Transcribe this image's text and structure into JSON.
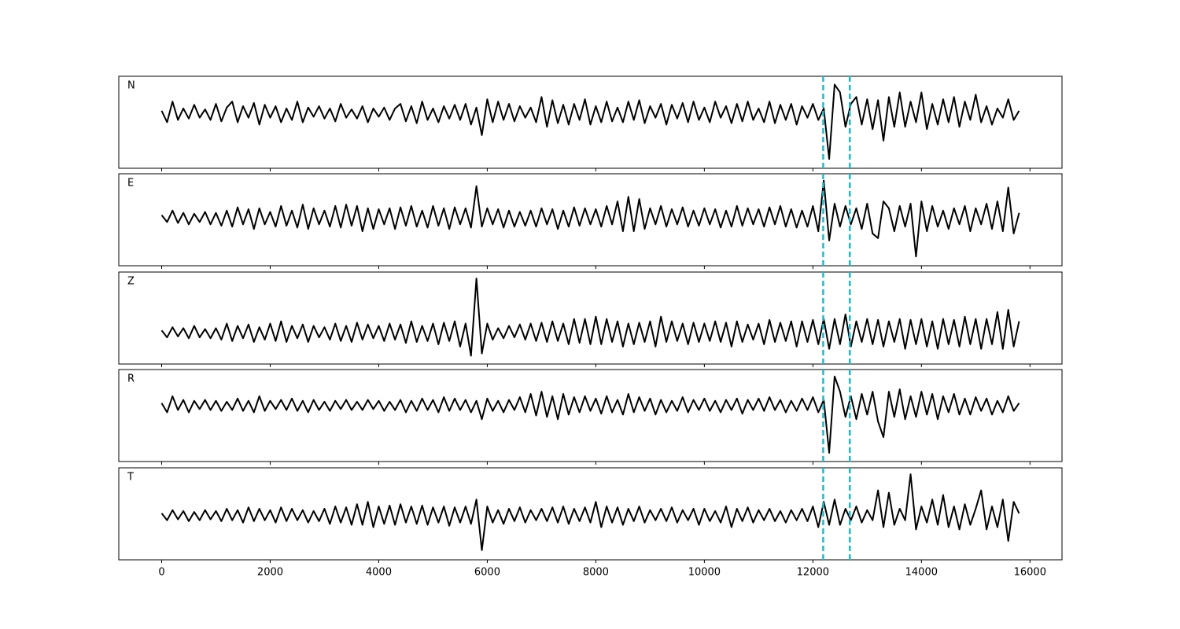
{
  "chart_data": {
    "type": "line",
    "xlim": [
      -790,
      16590
    ],
    "xticks": [
      0,
      2000,
      4000,
      6000,
      8000,
      10000,
      12000,
      14000,
      16000
    ],
    "markers": [
      12190,
      12680
    ],
    "marker_color": "#17becf",
    "x": [
      0,
      100,
      200,
      300,
      400,
      500,
      600,
      700,
      800,
      900,
      1000,
      1100,
      1200,
      1300,
      1400,
      1500,
      1600,
      1700,
      1800,
      1900,
      2000,
      2100,
      2200,
      2300,
      2400,
      2500,
      2600,
      2700,
      2800,
      2900,
      3000,
      3100,
      3200,
      3300,
      3400,
      3500,
      3600,
      3700,
      3800,
      3900,
      4000,
      4100,
      4200,
      4300,
      4400,
      4500,
      4600,
      4700,
      4800,
      4900,
      5000,
      5100,
      5200,
      5300,
      5400,
      5500,
      5600,
      5700,
      5800,
      5900,
      6000,
      6100,
      6200,
      6300,
      6400,
      6500,
      6600,
      6700,
      6800,
      6900,
      7000,
      7100,
      7200,
      7300,
      7400,
      7500,
      7600,
      7700,
      7800,
      7900,
      8000,
      8100,
      8200,
      8300,
      8400,
      8500,
      8600,
      8700,
      8800,
      8900,
      9000,
      9100,
      9200,
      9300,
      9400,
      9500,
      9600,
      9700,
      9800,
      9900,
      10000,
      10100,
      10200,
      10300,
      10400,
      10500,
      10600,
      10700,
      10800,
      10900,
      11000,
      11100,
      11200,
      11300,
      11400,
      11500,
      11600,
      11700,
      11800,
      11900,
      12000,
      12100,
      12200,
      12300,
      12400,
      12500,
      12600,
      12700,
      12800,
      12900,
      13000,
      13100,
      13200,
      13300,
      13400,
      13500,
      13600,
      13700,
      13800,
      13900,
      14000,
      14100,
      14200,
      14300,
      14400,
      14500,
      14600,
      14700,
      14800,
      14900,
      15000,
      15100,
      15200,
      15300,
      15400,
      15500,
      15600,
      15700,
      15800
    ],
    "series": [
      {
        "name": "N",
        "color": "#000000",
        "ylim": [
          -1.2,
          0.8
        ],
        "values": [
          0.05,
          -0.2,
          0.25,
          -0.15,
          0.1,
          -0.12,
          0.18,
          -0.1,
          0.08,
          -0.15,
          0.2,
          -0.18,
          0.12,
          0.25,
          -0.2,
          0.15,
          -0.1,
          0.22,
          -0.25,
          0.18,
          -0.1,
          0.15,
          -0.2,
          0.1,
          -0.15,
          0.25,
          -0.2,
          0.12,
          -0.08,
          0.15,
          -0.12,
          0.1,
          -0.18,
          0.2,
          -0.1,
          0.08,
          -0.12,
          0.15,
          -0.2,
          0.1,
          -0.08,
          0.12,
          -0.15,
          0.1,
          0.2,
          -0.18,
          0.15,
          -0.22,
          0.25,
          -0.15,
          0.1,
          -0.2,
          0.15,
          -0.12,
          0.18,
          -0.15,
          0.2,
          -0.25,
          0.12,
          -0.48,
          0.3,
          -0.2,
          0.25,
          -0.15,
          0.2,
          -0.18,
          0.15,
          -0.1,
          0.12,
          -0.2,
          0.35,
          -0.3,
          0.28,
          -0.22,
          0.18,
          -0.25,
          0.2,
          -0.15,
          0.3,
          -0.25,
          0.15,
          -0.2,
          0.25,
          -0.18,
          0.12,
          -0.2,
          0.25,
          -0.15,
          0.28,
          -0.22,
          0.15,
          -0.1,
          0.2,
          -0.25,
          0.18,
          -0.12,
          0.22,
          -0.2,
          0.25,
          -0.15,
          0.12,
          -0.2,
          0.25,
          -0.1,
          0.15,
          -0.22,
          0.2,
          -0.18,
          0.25,
          -0.15,
          0.1,
          -0.2,
          0.25,
          -0.22,
          0.18,
          -0.15,
          0.2,
          -0.25,
          0.15,
          -0.1,
          0.2,
          -0.15,
          0.1,
          -1.0,
          0.62,
          0.45,
          -0.3,
          0.2,
          0.35,
          -0.25,
          0.3,
          -0.35,
          0.28,
          -0.6,
          0.35,
          -0.3,
          0.45,
          -0.3,
          0.25,
          -0.2,
          0.45,
          -0.35,
          0.2,
          -0.25,
          0.3,
          -0.2,
          0.35,
          -0.3,
          0.25,
          -0.15,
          0.4,
          -0.2,
          0.15,
          -0.25,
          0.1,
          -0.1,
          0.3,
          -0.15,
          0.05
        ]
      },
      {
        "name": "E",
        "color": "#000000",
        "ylim": [
          -1.05,
          0.95
        ],
        "values": [
          0.05,
          -0.1,
          0.15,
          -0.12,
          0.1,
          -0.15,
          0.08,
          -0.1,
          0.12,
          -0.15,
          0.1,
          -0.18,
          0.15,
          -0.2,
          0.22,
          -0.15,
          0.18,
          -0.25,
          0.2,
          -0.15,
          0.12,
          -0.2,
          0.25,
          -0.18,
          0.15,
          -0.22,
          0.28,
          -0.25,
          0.2,
          -0.15,
          0.15,
          -0.2,
          0.25,
          -0.22,
          0.28,
          -0.18,
          0.25,
          -0.3,
          0.2,
          -0.25,
          0.18,
          -0.15,
          0.2,
          -0.25,
          0.22,
          -0.18,
          0.25,
          -0.2,
          0.15,
          -0.22,
          0.25,
          -0.18,
          0.2,
          -0.25,
          0.22,
          -0.15,
          0.2,
          -0.22,
          0.68,
          -0.2,
          0.2,
          -0.15,
          0.18,
          -0.22,
          0.15,
          -0.2,
          0.12,
          -0.18,
          0.15,
          -0.2,
          0.2,
          -0.15,
          0.18,
          -0.25,
          0.15,
          -0.2,
          0.22,
          -0.18,
          0.2,
          -0.15,
          0.18,
          -0.2,
          0.25,
          -0.15,
          0.35,
          -0.3,
          0.45,
          -0.3,
          0.4,
          -0.25,
          0.2,
          -0.15,
          0.25,
          -0.2,
          0.18,
          -0.15,
          0.22,
          -0.2,
          0.15,
          -0.18,
          0.2,
          -0.15,
          0.18,
          -0.22,
          0.15,
          -0.2,
          0.25,
          -0.18,
          0.2,
          -0.15,
          0.18,
          -0.2,
          0.22,
          -0.15,
          0.25,
          -0.2,
          0.18,
          -0.22,
          0.15,
          -0.2,
          0.25,
          -0.3,
          0.8,
          -0.5,
          0.3,
          -0.2,
          0.25,
          -0.15,
          0.2,
          -0.25,
          0.3,
          -0.35,
          -0.45,
          0.35,
          0.2,
          -0.3,
          0.25,
          -0.2,
          0.3,
          -0.85,
          0.35,
          -0.3,
          0.25,
          -0.2,
          0.15,
          -0.25,
          0.2,
          -0.15,
          0.25,
          -0.3,
          0.2,
          -0.15,
          0.3,
          -0.25,
          0.35,
          -0.3,
          0.65,
          -0.35,
          0.1
        ]
      },
      {
        "name": "Z",
        "color": "#000000",
        "ylim": [
          -0.68,
          1.32
        ],
        "values": [
          0.05,
          -0.1,
          0.12,
          -0.08,
          0.1,
          -0.12,
          0.15,
          -0.1,
          0.08,
          -0.12,
          0.1,
          -0.15,
          0.2,
          -0.18,
          0.15,
          -0.12,
          0.18,
          -0.2,
          0.12,
          -0.15,
          0.2,
          -0.18,
          0.25,
          -0.2,
          0.15,
          -0.12,
          0.18,
          -0.2,
          0.15,
          -0.1,
          0.12,
          -0.15,
          0.2,
          -0.18,
          0.15,
          -0.2,
          0.22,
          -0.15,
          0.18,
          -0.12,
          0.15,
          -0.18,
          0.2,
          -0.15,
          0.18,
          -0.22,
          0.25,
          -0.2,
          0.15,
          -0.18,
          0.2,
          -0.25,
          0.22,
          -0.18,
          0.25,
          -0.3,
          0.2,
          -0.5,
          1.18,
          -0.45,
          0.2,
          -0.15,
          0.1,
          -0.12,
          0.15,
          -0.1,
          0.18,
          -0.15,
          0.2,
          -0.18,
          0.22,
          -0.2,
          0.25,
          -0.18,
          0.2,
          -0.25,
          0.3,
          -0.22,
          0.3,
          -0.25,
          0.35,
          -0.25,
          0.3,
          -0.2,
          0.25,
          -0.3,
          0.2,
          -0.25,
          0.22,
          -0.2,
          0.25,
          -0.3,
          0.35,
          -0.2,
          0.25,
          -0.18,
          0.2,
          -0.25,
          0.22,
          -0.2,
          0.2,
          -0.18,
          0.25,
          -0.2,
          0.22,
          -0.3,
          0.25,
          -0.2,
          0.18,
          -0.15,
          0.2,
          -0.25,
          0.28,
          -0.2,
          0.22,
          -0.18,
          0.25,
          -0.3,
          0.25,
          -0.2,
          0.28,
          -0.25,
          0.3,
          -0.35,
          0.3,
          -0.25,
          0.4,
          -0.3,
          0.25,
          -0.2,
          0.3,
          -0.25,
          0.28,
          -0.3,
          0.25,
          -0.2,
          0.3,
          -0.35,
          0.28,
          -0.25,
          0.3,
          -0.3,
          0.25,
          -0.35,
          0.3,
          -0.25,
          0.28,
          -0.3,
          0.35,
          -0.25,
          0.3,
          -0.35,
          0.3,
          -0.25,
          0.45,
          -0.35,
          0.5,
          -0.3,
          0.25
        ]
      },
      {
        "name": "R",
        "color": "#000000",
        "ylim": [
          -1.22,
          0.78
        ],
        "values": [
          0.05,
          -0.15,
          0.2,
          -0.1,
          0.12,
          -0.15,
          0.1,
          -0.08,
          0.12,
          -0.1,
          0.1,
          -0.12,
          0.08,
          -0.1,
          0.15,
          -0.12,
          0.1,
          -0.15,
          0.2,
          -0.12,
          0.1,
          -0.08,
          0.12,
          -0.1,
          0.15,
          -0.12,
          0.1,
          -0.15,
          0.12,
          -0.1,
          0.08,
          -0.12,
          0.1,
          -0.08,
          0.12,
          -0.1,
          0.08,
          -0.1,
          0.12,
          -0.08,
          0.1,
          -0.12,
          0.08,
          -0.1,
          0.12,
          -0.15,
          0.1,
          -0.12,
          0.15,
          -0.1,
          0.12,
          -0.15,
          0.18,
          -0.12,
          0.15,
          -0.1,
          0.12,
          -0.15,
          0.1,
          -0.3,
          0.15,
          -0.12,
          0.1,
          -0.15,
          0.12,
          -0.1,
          0.18,
          -0.15,
          0.25,
          -0.22,
          0.3,
          -0.25,
          0.2,
          -0.3,
          0.25,
          -0.2,
          0.18,
          -0.15,
          0.2,
          -0.12,
          0.15,
          -0.18,
          0.2,
          -0.15,
          0.12,
          -0.2,
          0.25,
          -0.15,
          0.18,
          -0.12,
          0.15,
          -0.2,
          0.12,
          -0.15,
          0.1,
          -0.12,
          0.18,
          -0.15,
          0.12,
          -0.1,
          0.15,
          -0.12,
          0.1,
          -0.15,
          0.12,
          -0.1,
          0.15,
          -0.18,
          0.12,
          -0.1,
          0.15,
          -0.12,
          0.18,
          -0.1,
          0.12,
          -0.15,
          0.1,
          -0.12,
          0.15,
          -0.1,
          0.18,
          -0.15,
          0.12,
          -1.03,
          0.63,
          0.3,
          -0.25,
          0.2,
          -0.3,
          0.25,
          -0.2,
          0.3,
          -0.35,
          -0.69,
          0.3,
          -0.25,
          0.35,
          -0.3,
          0.2,
          -0.25,
          0.3,
          -0.2,
          0.25,
          -0.3,
          0.2,
          -0.15,
          0.25,
          -0.2,
          0.15,
          -0.2,
          0.18,
          -0.12,
          0.15,
          -0.2,
          0.1,
          -0.15,
          0.2,
          -0.12,
          0.05
        ]
      },
      {
        "name": "T",
        "color": "#000000",
        "ylim": [
          -0.96,
          1.04
        ],
        "values": [
          0.05,
          -0.1,
          0.12,
          -0.08,
          0.1,
          -0.12,
          0.08,
          -0.1,
          0.12,
          -0.08,
          0.1,
          -0.12,
          0.15,
          -0.1,
          0.12,
          -0.15,
          0.18,
          -0.12,
          0.15,
          -0.1,
          0.12,
          -0.15,
          0.18,
          -0.12,
          0.15,
          -0.1,
          0.12,
          -0.15,
          0.1,
          -0.12,
          0.15,
          -0.18,
          0.2,
          -0.15,
          0.18,
          -0.2,
          0.25,
          -0.2,
          0.3,
          -0.25,
          0.2,
          -0.18,
          0.22,
          -0.2,
          0.25,
          -0.15,
          0.2,
          -0.18,
          0.22,
          -0.2,
          0.18,
          -0.15,
          0.2,
          -0.22,
          0.18,
          -0.15,
          0.2,
          -0.18,
          0.35,
          -0.75,
          0.2,
          -0.15,
          0.12,
          -0.18,
          0.15,
          -0.12,
          0.18,
          -0.15,
          0.12,
          -0.1,
          0.15,
          -0.12,
          0.18,
          -0.15,
          0.2,
          -0.18,
          0.15,
          -0.12,
          0.18,
          -0.15,
          0.3,
          -0.25,
          0.2,
          -0.15,
          0.18,
          -0.2,
          0.15,
          -0.12,
          0.2,
          -0.15,
          0.12,
          -0.1,
          0.15,
          -0.12,
          0.18,
          -0.15,
          0.12,
          -0.1,
          0.15,
          -0.2,
          0.15,
          -0.12,
          0.1,
          -0.15,
          0.2,
          -0.25,
          0.15,
          -0.12,
          0.18,
          -0.15,
          0.12,
          -0.1,
          0.15,
          -0.12,
          0.1,
          -0.15,
          0.12,
          -0.1,
          0.15,
          -0.12,
          0.2,
          -0.25,
          0.3,
          -0.2,
          0.35,
          -0.2,
          0.15,
          -0.1,
          0.2,
          -0.15,
          0.12,
          -0.1,
          0.55,
          -0.25,
          0.5,
          -0.2,
          0.15,
          -0.1,
          0.9,
          -0.3,
          0.2,
          -0.15,
          0.35,
          -0.2,
          0.45,
          -0.25,
          0.2,
          -0.3,
          0.25,
          -0.2,
          0.15,
          0.55,
          -0.3,
          0.2,
          -0.25,
          0.35,
          -0.55,
          0.3,
          0.05
        ]
      }
    ]
  }
}
